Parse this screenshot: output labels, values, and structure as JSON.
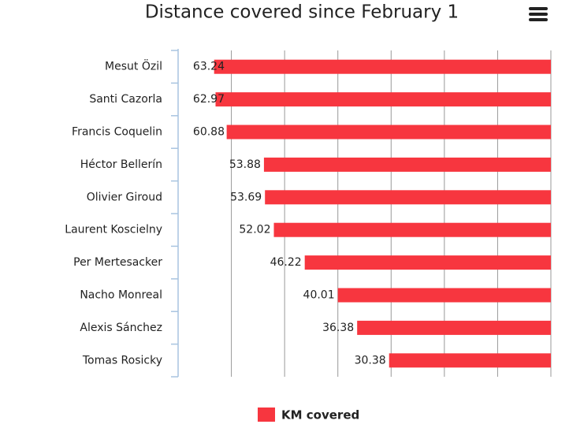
{
  "chart_data": {
    "type": "bar",
    "orientation": "horizontal",
    "title": "Distance covered since February 1",
    "categories": [
      "Mesut Özil",
      "Santi Cazorla",
      "Francis Coquelin",
      "Héctor Bellerín",
      "Olivier Giroud",
      "Laurent Koscielny",
      "Per Mertesacker",
      "Nacho Monreal",
      "Alexis Sánchez",
      "Tomas Rosicky"
    ],
    "series": [
      {
        "name": "KM covered",
        "color": "#f7363f",
        "values": [
          63.24,
          62.97,
          60.88,
          53.88,
          53.69,
          52.02,
          46.22,
          40.01,
          36.38,
          30.38
        ]
      }
    ],
    "xlim": [
      0,
      70
    ],
    "xticks": [
      0,
      10,
      20,
      30,
      40,
      50,
      60,
      70
    ],
    "reversed": true,
    "grid": true,
    "legend": "bottom"
  }
}
